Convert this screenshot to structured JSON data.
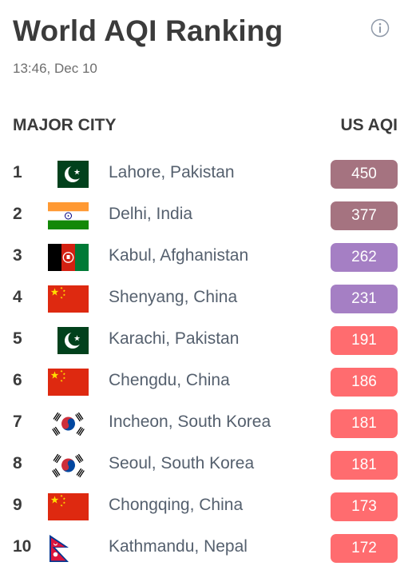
{
  "header": {
    "title": "World AQI Ranking",
    "timestamp": "13:46, Dec 10"
  },
  "columns": {
    "city": "MAJOR CITY",
    "aqi": "US AQI"
  },
  "colors": {
    "hazardous": "#a57380",
    "very_unhealthy": "#a57fc4",
    "unhealthy": "#ff6c6f"
  },
  "rows": [
    {
      "rank": "1",
      "flag": "pakistan-flag-icon",
      "city": "Lahore, Pakistan",
      "aqi": "450",
      "level": "hazardous"
    },
    {
      "rank": "2",
      "flag": "india-flag-icon",
      "city": "Delhi, India",
      "aqi": "377",
      "level": "hazardous"
    },
    {
      "rank": "3",
      "flag": "afghanistan-flag-icon",
      "city": "Kabul, Afghanistan",
      "aqi": "262",
      "level": "very_unhealthy"
    },
    {
      "rank": "4",
      "flag": "china-flag-icon",
      "city": "Shenyang, China",
      "aqi": "231",
      "level": "very_unhealthy"
    },
    {
      "rank": "5",
      "flag": "pakistan-flag-icon",
      "city": "Karachi, Pakistan",
      "aqi": "191",
      "level": "unhealthy"
    },
    {
      "rank": "6",
      "flag": "china-flag-icon",
      "city": "Chengdu, China",
      "aqi": "186",
      "level": "unhealthy"
    },
    {
      "rank": "7",
      "flag": "south-korea-flag-icon",
      "city": "Incheon, South Korea",
      "aqi": "181",
      "level": "unhealthy"
    },
    {
      "rank": "8",
      "flag": "south-korea-flag-icon",
      "city": "Seoul, South Korea",
      "aqi": "181",
      "level": "unhealthy"
    },
    {
      "rank": "9",
      "flag": "china-flag-icon",
      "city": "Chongqing, China",
      "aqi": "173",
      "level": "unhealthy"
    },
    {
      "rank": "10",
      "flag": "nepal-flag-icon",
      "city": "Kathmandu, Nepal",
      "aqi": "172",
      "level": "unhealthy"
    }
  ]
}
